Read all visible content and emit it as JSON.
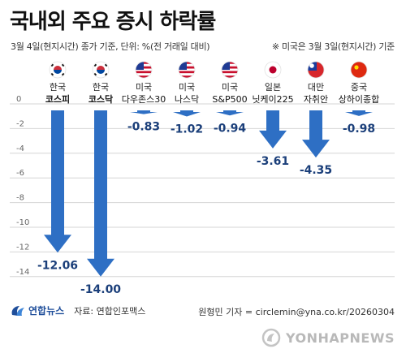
{
  "header": {
    "title": "국내외 주요 증시 하락률",
    "subtitle": "3월 4일(현지시간) 종가 기준, 단위: %(전 거래일 대비)",
    "note": "※ 미국은 3월 3일(현지시간) 기준"
  },
  "chart_data": {
    "type": "bar",
    "ylim": [
      -14,
      0
    ],
    "yticks": [
      0,
      -2,
      -4,
      -6,
      -8,
      -10,
      -12,
      -14
    ],
    "grid": true,
    "categories": [
      {
        "country": "한국",
        "index": "코스피",
        "flag": "korea-flag-icon",
        "highlight": true
      },
      {
        "country": "한국",
        "index": "코스닥",
        "flag": "korea-flag-icon",
        "highlight": true
      },
      {
        "country": "미국",
        "index": "다우존스30",
        "flag": "usa-flag-icon",
        "highlight": false
      },
      {
        "country": "미국",
        "index": "나스닥",
        "flag": "usa-flag-icon",
        "highlight": false
      },
      {
        "country": "미국",
        "index": "S&P500",
        "flag": "usa-flag-icon",
        "highlight": false
      },
      {
        "country": "일본",
        "index": "닛케이225",
        "flag": "japan-flag-icon",
        "highlight": false
      },
      {
        "country": "대만",
        "index": "자취안",
        "flag": "taiwan-flag-icon",
        "highlight": false
      },
      {
        "country": "중국",
        "index": "상하이종합",
        "flag": "china-flag-icon",
        "highlight": false
      }
    ],
    "values": [
      -12.06,
      -14.0,
      -0.83,
      -1.02,
      -0.94,
      -3.61,
      -4.35,
      -0.98
    ],
    "value_labels": [
      "-12.06",
      "-14.00",
      "-0.83",
      "-1.02",
      "-0.94",
      "-3.61",
      "-4.35",
      "-0.98"
    ],
    "colors": {
      "bar": "#2e6fc4",
      "grid": "#d6d6d6",
      "axis_text": "#666666"
    }
  },
  "footer": {
    "logo": "연합뉴스",
    "source": "자료: 연합인포맥스",
    "byline": "원형민 기자 = circlemin@yna.co.kr/20260304",
    "watermark": "YONHAPNEWS"
  }
}
